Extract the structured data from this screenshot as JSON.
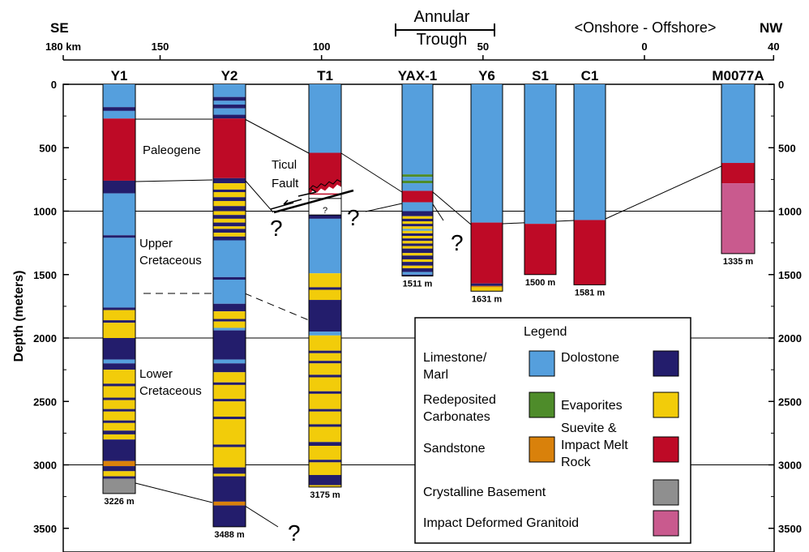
{
  "header": {
    "left_dir": "SE",
    "right_dir": "NW",
    "trough_line1": "Annular",
    "trough_line2": "Trough",
    "onshore_offshore": "<Onshore - Offshore>"
  },
  "km_axis": [
    {
      "label": "180 km",
      "km": 180
    },
    {
      "label": "150",
      "km": 150
    },
    {
      "label": "100",
      "km": 100
    },
    {
      "label": "50",
      "km": 50
    },
    {
      "label": "0",
      "km": 0
    },
    {
      "label": "40",
      "km": -40
    }
  ],
  "depth_axis": {
    "label": "Depth (meters)",
    "ticks": [
      "0",
      "500",
      "1000",
      "1500",
      "2000",
      "2500",
      "3000",
      "3500"
    ],
    "max": 3500
  },
  "colors": {
    "limestone": "#559fdd",
    "dolostone": "#231d6c",
    "evaporites": "#f2cc0a",
    "redeposited": "#4e8c2a",
    "sandstone": "#d9810b",
    "suevite": "#be0a26",
    "basement": "#8f8f8f",
    "granitoid": "#c95a8e",
    "unknown": "#ffffff"
  },
  "wells": [
    {
      "name": "Y1",
      "td_label": "3226 m",
      "td": 3226,
      "layers": [
        {
          "top": 0,
          "bot": 180,
          "lith": "limestone"
        },
        {
          "top": 180,
          "bot": 210,
          "lith": "dolostone"
        },
        {
          "top": 210,
          "bot": 270,
          "lith": "limestone"
        },
        {
          "top": 270,
          "bot": 760,
          "lith": "suevite"
        },
        {
          "top": 760,
          "bot": 860,
          "lith": "dolostone"
        },
        {
          "top": 860,
          "bot": 1190,
          "lith": "limestone"
        },
        {
          "top": 1190,
          "bot": 1210,
          "lith": "dolostone"
        },
        {
          "top": 1210,
          "bot": 1760,
          "lith": "limestone"
        },
        {
          "top": 1760,
          "bot": 1780,
          "lith": "dolostone"
        },
        {
          "top": 1780,
          "bot": 1860,
          "lith": "evaporites"
        },
        {
          "top": 1860,
          "bot": 1880,
          "lith": "dolostone"
        },
        {
          "top": 1880,
          "bot": 2000,
          "lith": "evaporites"
        },
        {
          "top": 2000,
          "bot": 2170,
          "lith": "dolostone"
        },
        {
          "top": 2170,
          "bot": 2200,
          "lith": "limestone"
        },
        {
          "top": 2200,
          "bot": 2250,
          "lith": "dolostone"
        },
        {
          "top": 2250,
          "bot": 2360,
          "lith": "evaporites"
        },
        {
          "top": 2360,
          "bot": 2380,
          "lith": "dolostone"
        },
        {
          "top": 2380,
          "bot": 2470,
          "lith": "evaporites"
        },
        {
          "top": 2470,
          "bot": 2490,
          "lith": "dolostone"
        },
        {
          "top": 2490,
          "bot": 2560,
          "lith": "evaporites"
        },
        {
          "top": 2560,
          "bot": 2580,
          "lith": "dolostone"
        },
        {
          "top": 2580,
          "bot": 2650,
          "lith": "evaporites"
        },
        {
          "top": 2650,
          "bot": 2670,
          "lith": "dolostone"
        },
        {
          "top": 2670,
          "bot": 2730,
          "lith": "evaporites"
        },
        {
          "top": 2730,
          "bot": 2760,
          "lith": "dolostone"
        },
        {
          "top": 2760,
          "bot": 2800,
          "lith": "evaporites"
        },
        {
          "top": 2800,
          "bot": 2970,
          "lith": "dolostone"
        },
        {
          "top": 2970,
          "bot": 3010,
          "lith": "sandstone"
        },
        {
          "top": 3010,
          "bot": 3050,
          "lith": "dolostone"
        },
        {
          "top": 3050,
          "bot": 3090,
          "lith": "evaporites"
        },
        {
          "top": 3090,
          "bot": 3110,
          "lith": "dolostone"
        },
        {
          "top": 3110,
          "bot": 3226,
          "lith": "basement"
        }
      ]
    },
    {
      "name": "Y2",
      "td_label": "3488 m",
      "td": 3488,
      "layers": [
        {
          "top": 0,
          "bot": 100,
          "lith": "limestone"
        },
        {
          "top": 100,
          "bot": 130,
          "lith": "dolostone"
        },
        {
          "top": 130,
          "bot": 160,
          "lith": "limestone"
        },
        {
          "top": 160,
          "bot": 190,
          "lith": "dolostone"
        },
        {
          "top": 190,
          "bot": 240,
          "lith": "limestone"
        },
        {
          "top": 240,
          "bot": 270,
          "lith": "dolostone"
        },
        {
          "top": 270,
          "bot": 740,
          "lith": "suevite"
        },
        {
          "top": 740,
          "bot": 780,
          "lith": "dolostone"
        },
        {
          "top": 780,
          "bot": 830,
          "lith": "evaporites"
        },
        {
          "top": 830,
          "bot": 850,
          "lith": "dolostone"
        },
        {
          "top": 850,
          "bot": 890,
          "lith": "evaporites"
        },
        {
          "top": 890,
          "bot": 920,
          "lith": "dolostone"
        },
        {
          "top": 920,
          "bot": 960,
          "lith": "evaporites"
        },
        {
          "top": 960,
          "bot": 1000,
          "lith": "dolostone"
        },
        {
          "top": 1000,
          "bot": 1030,
          "lith": "evaporites"
        },
        {
          "top": 1030,
          "bot": 1060,
          "lith": "dolostone"
        },
        {
          "top": 1060,
          "bot": 1090,
          "lith": "evaporites"
        },
        {
          "top": 1090,
          "bot": 1120,
          "lith": "dolostone"
        },
        {
          "top": 1120,
          "bot": 1140,
          "lith": "evaporites"
        },
        {
          "top": 1140,
          "bot": 1170,
          "lith": "dolostone"
        },
        {
          "top": 1170,
          "bot": 1200,
          "lith": "evaporites"
        },
        {
          "top": 1200,
          "bot": 1230,
          "lith": "dolostone"
        },
        {
          "top": 1230,
          "bot": 1520,
          "lith": "limestone"
        },
        {
          "top": 1520,
          "bot": 1540,
          "lith": "dolostone"
        },
        {
          "top": 1540,
          "bot": 1730,
          "lith": "limestone"
        },
        {
          "top": 1730,
          "bot": 1790,
          "lith": "dolostone"
        },
        {
          "top": 1790,
          "bot": 1850,
          "lith": "evaporites"
        },
        {
          "top": 1850,
          "bot": 1870,
          "lith": "dolostone"
        },
        {
          "top": 1870,
          "bot": 1920,
          "lith": "evaporites"
        },
        {
          "top": 1920,
          "bot": 1940,
          "lith": "limestone"
        },
        {
          "top": 1940,
          "bot": 2170,
          "lith": "dolostone"
        },
        {
          "top": 2170,
          "bot": 2200,
          "lith": "limestone"
        },
        {
          "top": 2200,
          "bot": 2270,
          "lith": "dolostone"
        },
        {
          "top": 2270,
          "bot": 2350,
          "lith": "evaporites"
        },
        {
          "top": 2350,
          "bot": 2370,
          "lith": "dolostone"
        },
        {
          "top": 2370,
          "bot": 2480,
          "lith": "evaporites"
        },
        {
          "top": 2480,
          "bot": 2500,
          "lith": "dolostone"
        },
        {
          "top": 2500,
          "bot": 2620,
          "lith": "evaporites"
        },
        {
          "top": 2620,
          "bot": 2640,
          "lith": "dolostone"
        },
        {
          "top": 2640,
          "bot": 2840,
          "lith": "evaporites"
        },
        {
          "top": 2840,
          "bot": 2860,
          "lith": "dolostone"
        },
        {
          "top": 2860,
          "bot": 3020,
          "lith": "evaporites"
        },
        {
          "top": 3020,
          "bot": 3070,
          "lith": "dolostone"
        },
        {
          "top": 3070,
          "bot": 3090,
          "lith": "evaporites"
        },
        {
          "top": 3090,
          "bot": 3290,
          "lith": "dolostone"
        },
        {
          "top": 3290,
          "bot": 3320,
          "lith": "sandstone"
        },
        {
          "top": 3320,
          "bot": 3488,
          "lith": "dolostone"
        }
      ]
    },
    {
      "name": "T1",
      "td_label": "3175 m",
      "td": 3175,
      "layers": [
        {
          "top": 0,
          "bot": 540,
          "lith": "limestone"
        },
        {
          "top": 540,
          "bot": 870,
          "lith": "suevite"
        },
        {
          "top": 900,
          "bot": 1030,
          "lith": "unknown"
        },
        {
          "top": 1030,
          "bot": 1060,
          "lith": "dolostone"
        },
        {
          "top": 1060,
          "bot": 1490,
          "lith": "limestone"
        },
        {
          "top": 1490,
          "bot": 1600,
          "lith": "evaporites"
        },
        {
          "top": 1600,
          "bot": 1620,
          "lith": "dolostone"
        },
        {
          "top": 1620,
          "bot": 1700,
          "lith": "evaporites"
        },
        {
          "top": 1700,
          "bot": 1950,
          "lith": "dolostone"
        },
        {
          "top": 1950,
          "bot": 1980,
          "lith": "limestone"
        },
        {
          "top": 1980,
          "bot": 2100,
          "lith": "evaporites"
        },
        {
          "top": 2100,
          "bot": 2120,
          "lith": "dolostone"
        },
        {
          "top": 2120,
          "bot": 2180,
          "lith": "evaporites"
        },
        {
          "top": 2180,
          "bot": 2200,
          "lith": "dolostone"
        },
        {
          "top": 2200,
          "bot": 2290,
          "lith": "evaporites"
        },
        {
          "top": 2290,
          "bot": 2310,
          "lith": "dolostone"
        },
        {
          "top": 2310,
          "bot": 2420,
          "lith": "evaporites"
        },
        {
          "top": 2420,
          "bot": 2440,
          "lith": "dolostone"
        },
        {
          "top": 2440,
          "bot": 2560,
          "lith": "evaporites"
        },
        {
          "top": 2560,
          "bot": 2580,
          "lith": "dolostone"
        },
        {
          "top": 2580,
          "bot": 2680,
          "lith": "evaporites"
        },
        {
          "top": 2680,
          "bot": 2700,
          "lith": "dolostone"
        },
        {
          "top": 2700,
          "bot": 2820,
          "lith": "evaporites"
        },
        {
          "top": 2820,
          "bot": 2850,
          "lith": "dolostone"
        },
        {
          "top": 2850,
          "bot": 2960,
          "lith": "evaporites"
        },
        {
          "top": 2960,
          "bot": 2980,
          "lith": "dolostone"
        },
        {
          "top": 2980,
          "bot": 3080,
          "lith": "evaporites"
        },
        {
          "top": 3080,
          "bot": 3160,
          "lith": "dolostone"
        },
        {
          "top": 3160,
          "bot": 3175,
          "lith": "evaporites"
        }
      ]
    },
    {
      "name": "YAX-1",
      "td_label": "1511 m",
      "td": 1511,
      "layers": [
        {
          "top": 0,
          "bot": 710,
          "lith": "limestone"
        },
        {
          "top": 710,
          "bot": 730,
          "lith": "redeposited"
        },
        {
          "top": 730,
          "bot": 760,
          "lith": "limestone"
        },
        {
          "top": 760,
          "bot": 780,
          "lith": "redeposited"
        },
        {
          "top": 780,
          "bot": 840,
          "lith": "limestone"
        },
        {
          "top": 840,
          "bot": 930,
          "lith": "suevite"
        },
        {
          "top": 930,
          "bot": 1000,
          "lith": "limestone"
        },
        {
          "top": 1000,
          "bot": 1040,
          "lith": "dolostone"
        },
        {
          "top": 1040,
          "bot": 1060,
          "lith": "evaporites"
        },
        {
          "top": 1060,
          "bot": 1080,
          "lith": "dolostone"
        },
        {
          "top": 1080,
          "bot": 1100,
          "lith": "evaporites"
        },
        {
          "top": 1100,
          "bot": 1120,
          "lith": "dolostone"
        },
        {
          "top": 1120,
          "bot": 1140,
          "lith": "evaporites"
        },
        {
          "top": 1140,
          "bot": 1155,
          "lith": "limestone"
        },
        {
          "top": 1155,
          "bot": 1175,
          "lith": "evaporites"
        },
        {
          "top": 1175,
          "bot": 1195,
          "lith": "dolostone"
        },
        {
          "top": 1195,
          "bot": 1215,
          "lith": "evaporites"
        },
        {
          "top": 1215,
          "bot": 1235,
          "lith": "dolostone"
        },
        {
          "top": 1235,
          "bot": 1255,
          "lith": "evaporites"
        },
        {
          "top": 1255,
          "bot": 1275,
          "lith": "dolostone"
        },
        {
          "top": 1275,
          "bot": 1295,
          "lith": "evaporites"
        },
        {
          "top": 1295,
          "bot": 1330,
          "lith": "dolostone"
        },
        {
          "top": 1330,
          "bot": 1350,
          "lith": "evaporites"
        },
        {
          "top": 1350,
          "bot": 1380,
          "lith": "dolostone"
        },
        {
          "top": 1380,
          "bot": 1400,
          "lith": "evaporites"
        },
        {
          "top": 1400,
          "bot": 1430,
          "lith": "dolostone"
        },
        {
          "top": 1430,
          "bot": 1450,
          "lith": "evaporites"
        },
        {
          "top": 1450,
          "bot": 1480,
          "lith": "dolostone"
        },
        {
          "top": 1480,
          "bot": 1500,
          "lith": "limestone"
        },
        {
          "top": 1500,
          "bot": 1511,
          "lith": "dolostone"
        }
      ]
    },
    {
      "name": "Y6",
      "td_label": "1631 m",
      "td": 1631,
      "layers": [
        {
          "top": 0,
          "bot": 1090,
          "lith": "limestone"
        },
        {
          "top": 1090,
          "bot": 1570,
          "lith": "suevite"
        },
        {
          "top": 1570,
          "bot": 1590,
          "lith": "dolostone"
        },
        {
          "top": 1590,
          "bot": 1600,
          "lith": "sandstone"
        },
        {
          "top": 1600,
          "bot": 1631,
          "lith": "evaporites"
        }
      ]
    },
    {
      "name": "S1",
      "td_label": "1500 m",
      "td": 1500,
      "layers": [
        {
          "top": 0,
          "bot": 1100,
          "lith": "limestone"
        },
        {
          "top": 1100,
          "bot": 1500,
          "lith": "suevite"
        }
      ]
    },
    {
      "name": "C1",
      "td_label": "1581 m",
      "td": 1581,
      "layers": [
        {
          "top": 0,
          "bot": 1070,
          "lith": "limestone"
        },
        {
          "top": 1070,
          "bot": 1581,
          "lith": "suevite"
        }
      ]
    },
    {
      "name": "M0077A",
      "td_label": "1335 m",
      "td": 1335,
      "layers": [
        {
          "top": 0,
          "bot": 620,
          "lith": "limestone"
        },
        {
          "top": 620,
          "bot": 780,
          "lith": "suevite"
        },
        {
          "top": 780,
          "bot": 1335,
          "lith": "granitoid"
        }
      ]
    }
  ],
  "annotations": {
    "paleogene": "Paleogene",
    "ticul_line1": "Ticul",
    "ticul_line2": "Fault",
    "upper_line1": "Upper",
    "upper_line2": "Cretaceous",
    "lower_line1": "Lower",
    "lower_line2": "Cretaceous",
    "question": "?",
    "t1_unknown": "?"
  },
  "legend": {
    "title": "Legend",
    "items": [
      {
        "label_lines": [
          "Limestone/",
          "Marl"
        ],
        "lith": "limestone"
      },
      {
        "label_lines": [
          "Dolostone"
        ],
        "lith": "dolostone"
      },
      {
        "label_lines": [
          "Redeposited",
          "Carbonates"
        ],
        "lith": "redeposited"
      },
      {
        "label_lines": [
          "Evaporites"
        ],
        "lith": "evaporites"
      },
      {
        "label_lines": [
          "Sandstone"
        ],
        "lith": "sandstone"
      },
      {
        "label_lines": [
          "Suevite &",
          "Impact Melt",
          "Rock"
        ],
        "lith": "suevite"
      },
      {
        "label_lines": [
          "Crystalline Basement"
        ],
        "lith": "basement"
      },
      {
        "label_lines": [
          "Impact Deformed Granitoid"
        ],
        "lith": "granitoid"
      }
    ]
  }
}
